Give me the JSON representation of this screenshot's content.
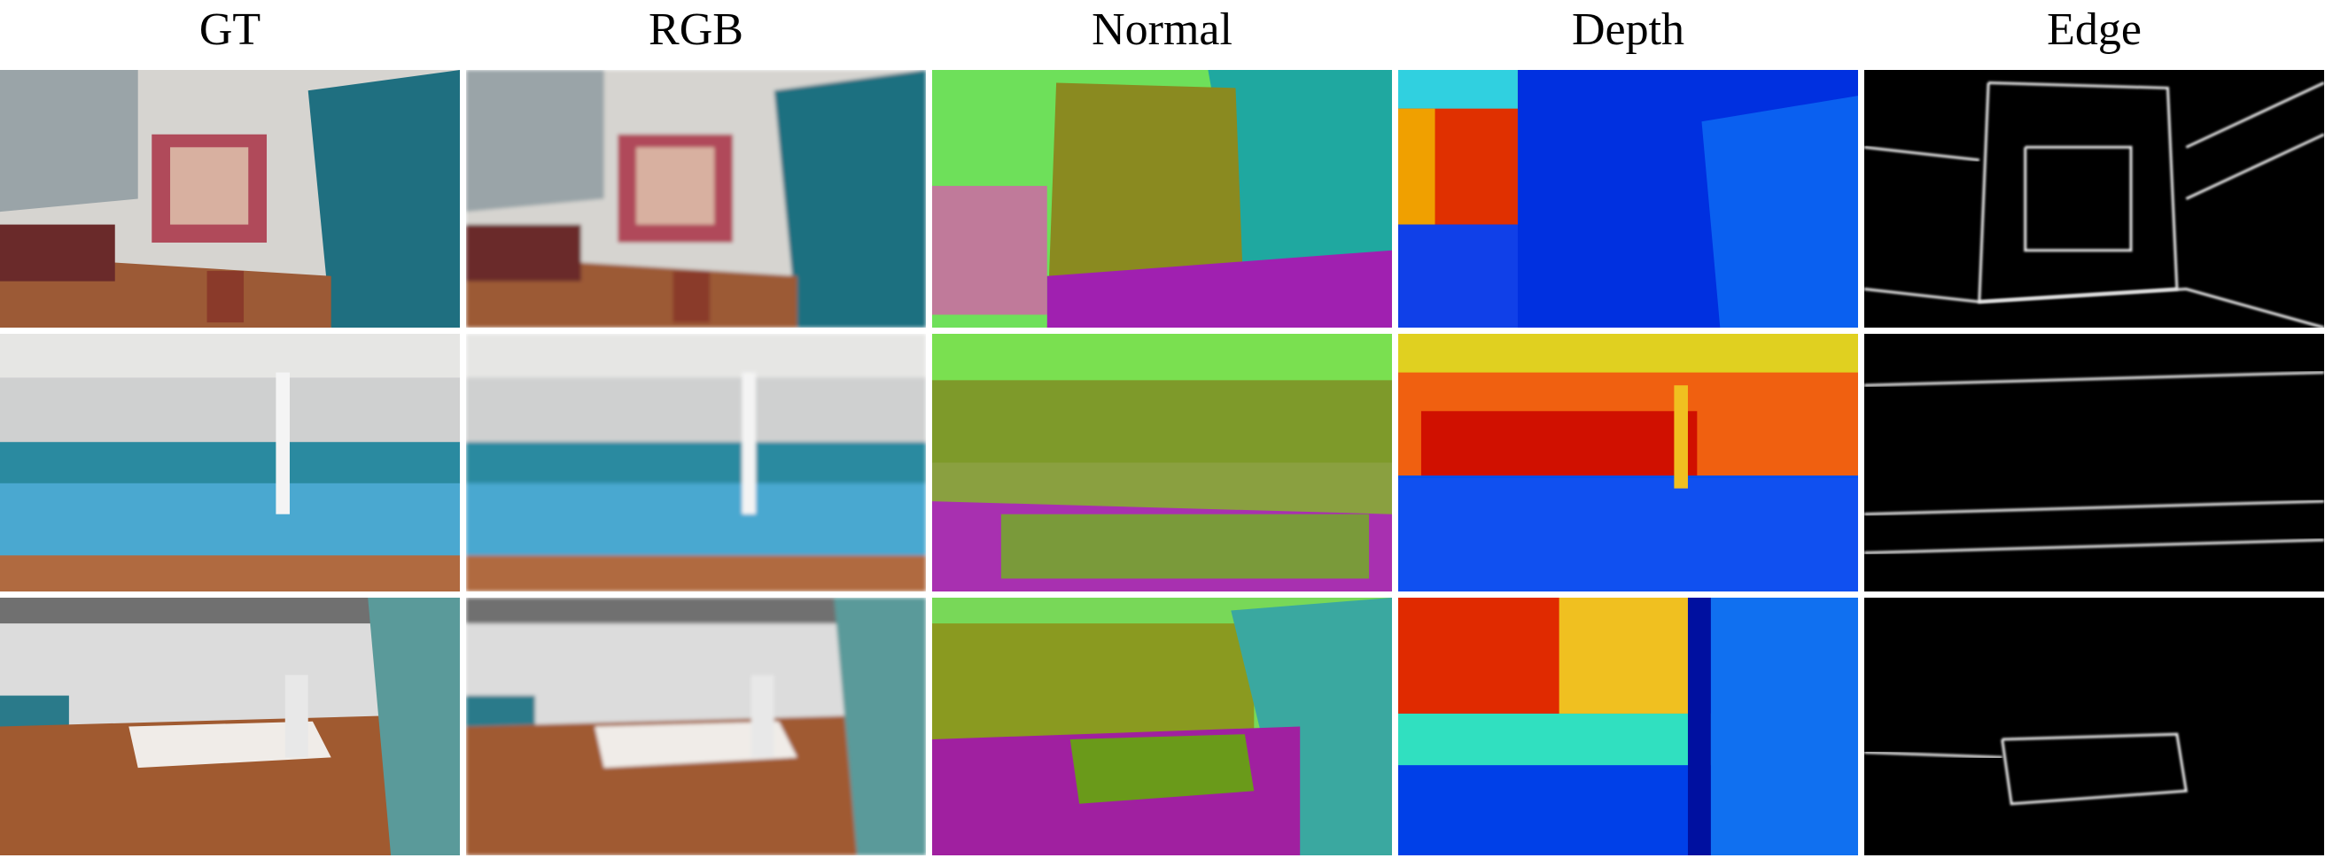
{
  "headers": [
    "GT",
    "RGB",
    "Normal",
    "Depth",
    "Edge"
  ]
}
